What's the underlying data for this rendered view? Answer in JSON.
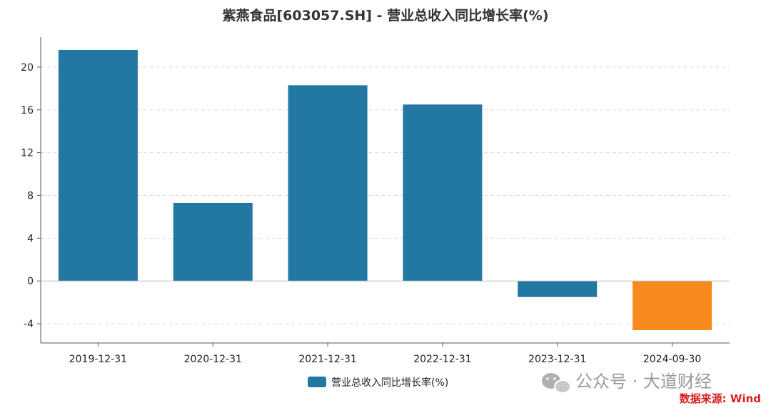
{
  "chart_data": {
    "type": "bar",
    "title": "紫燕食品[603057.SH] - 营业总收入同比增长率(%)",
    "categories": [
      "2019-12-31",
      "2020-12-31",
      "2021-12-31",
      "2022-12-31",
      "2023-12-31",
      "2024-09-30"
    ],
    "series": [
      {
        "name": "营业总收入同比增长率(%)",
        "values": [
          21.6,
          7.3,
          18.3,
          16.5,
          -1.5,
          -4.6
        ]
      }
    ],
    "bar_colors": [
      "#2277a3",
      "#2277a3",
      "#2277a3",
      "#2277a3",
      "#2277a3",
      "#f78a1c"
    ],
    "yticks": [
      -4,
      0,
      4,
      8,
      12,
      16,
      20
    ],
    "ylim": [
      -5.8,
      22.8
    ],
    "grid": true,
    "legend_position": "bottom-center"
  },
  "watermark": "公众号 · 大道财经",
  "source": "数据来源: Wind"
}
